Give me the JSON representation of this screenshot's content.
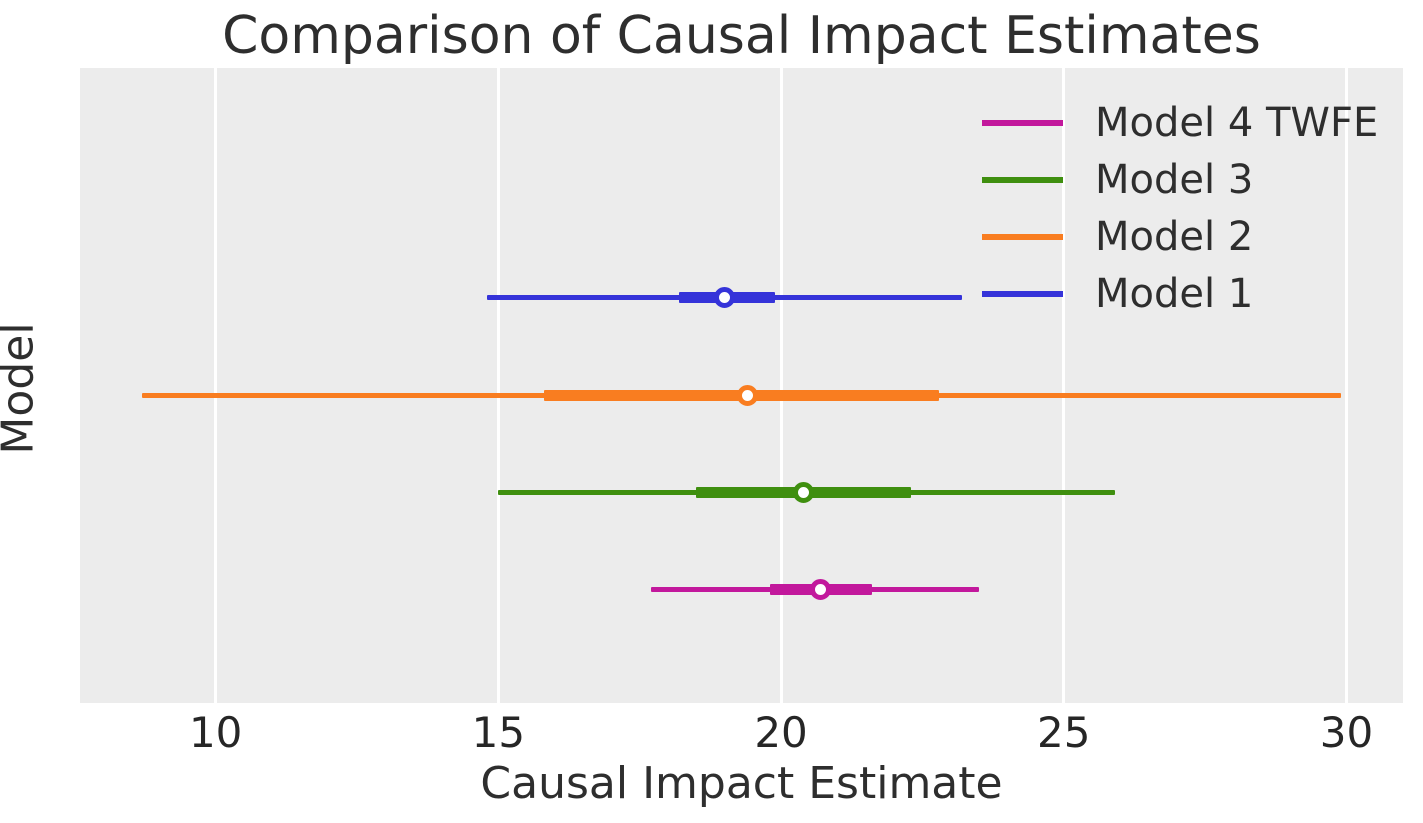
{
  "figure": {
    "kind": "matplotlib-style forest plot (static image, no interactive widgets)"
  },
  "colors": {
    "panel_background": "#ececec",
    "gridline": "#ffffff",
    "text": "#2e2e2e",
    "tick_text": "#262626",
    "marker_face": "#ffffff"
  },
  "chart_data": {
    "type": "forest",
    "title": "Comparison of Causal Impact Estimates",
    "xlabel": "Causal Impact Estimate",
    "ylabel": "Model",
    "xlim": [
      7.6,
      31.0
    ],
    "xticks": [
      10,
      15,
      20,
      25,
      30
    ],
    "grid": "vertical white gridlines on light gray panel, no y ticks",
    "legend_position": "upper-right, no frame",
    "legend_order": [
      "Model 4 TWFE",
      "Model 3",
      "Model 2",
      "Model 1"
    ],
    "series": [
      {
        "name": "Model 1",
        "color": "#3533d9",
        "median": 19.0,
        "ci50": [
          18.2,
          19.9
        ],
        "ci95": [
          14.8,
          23.2
        ],
        "row_fraction": 0.362
      },
      {
        "name": "Model 2",
        "color": "#f97d20",
        "median": 19.4,
        "ci50": [
          15.8,
          22.8
        ],
        "ci95": [
          8.7,
          29.9
        ],
        "row_fraction": 0.516
      },
      {
        "name": "Model 3",
        "color": "#3f8f0f",
        "median": 20.4,
        "ci50": [
          18.5,
          22.3
        ],
        "ci95": [
          15.0,
          25.9
        ],
        "row_fraction": 0.668
      },
      {
        "name": "Model 4 TWFE",
        "color": "#c2189c",
        "median": 20.7,
        "ci50": [
          19.8,
          21.6
        ],
        "ci95": [
          17.7,
          23.5
        ],
        "row_fraction": 0.822
      }
    ]
  }
}
